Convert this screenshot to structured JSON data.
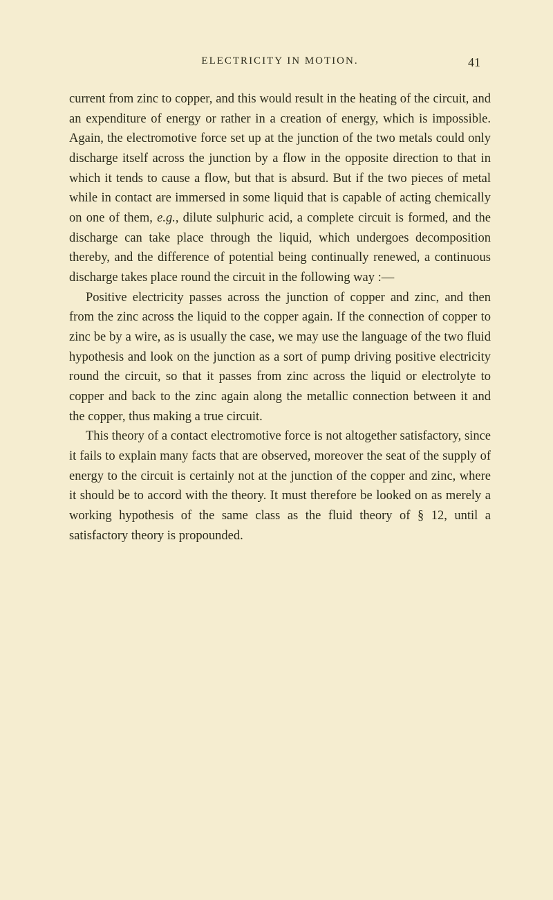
{
  "header": {
    "title": "ELECTRICITY IN MOTION.",
    "page_number": "41"
  },
  "paragraphs": {
    "p1": "current from zinc to copper, and this would result in the heating of the circuit, and an expenditure of energy or rather in a creation of energy, which is impossible. Again, the electromotive force set up at the junction of the two metals could only discharge itself across the junction by a flow in the opposite direction to that in which it tends to cause a flow, but that is absurd. But if the two pieces of metal while in contact are immersed in some liquid that is capable of acting chemically on one of them, ",
    "p1_italic": "e.g.",
    "p1_cont": ", dilute sulphuric acid, a complete circuit is formed, and the discharge can take place through the liquid, which undergoes decomposition thereby, and the difference of potential being continually renewed, a continuous discharge takes place round the circuit in the following way :—",
    "p2": "Positive electricity passes across the junction of copper and zinc, and then from the zinc across the liquid to the copper again. If the connection of copper to zinc be by a wire, as is usually the case, we may use the language of the two fluid hypothesis and look on the junction as a sort of pump driving positive electricity round the circuit, so that it passes from zinc across the liquid or electrolyte to copper and back to the zinc again along the metallic connection between it and the copper, thus making a true circuit.",
    "p3": "This theory of a contact electromotive force is not altogether satisfactory, since it fails to explain many facts that are observed, moreover the seat of the supply of energy to the circuit is certainly not at the junction of the copper and zinc, where it should be to accord with the theory. It must therefore be looked on as merely a working hypothesis of the same class as the fluid theory of § 12, until a satisfactory theory is propounded."
  },
  "styling": {
    "background_color": "#f5edd0",
    "text_color": "#2a2a1a",
    "body_fontsize": 18.5,
    "header_fontsize": 15,
    "page_number_fontsize": 18,
    "line_height": 1.55,
    "font_family": "Georgia, Times New Roman, serif"
  }
}
